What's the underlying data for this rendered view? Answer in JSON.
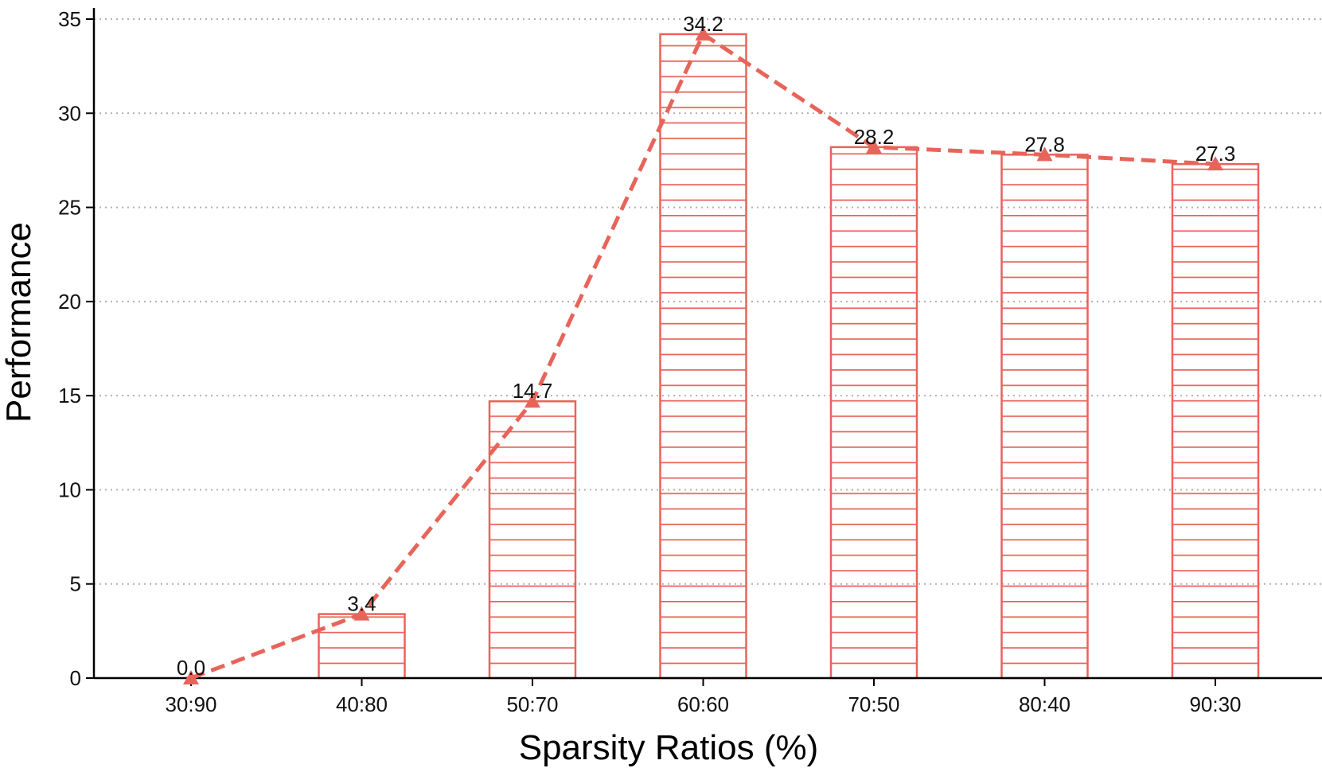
{
  "chart_data": {
    "type": "bar",
    "title": "",
    "xlabel": "Sparsity Ratios (%)",
    "ylabel": "Performance",
    "categories": [
      "30:90",
      "40:80",
      "50:70",
      "60:60",
      "70:50",
      "80:40",
      "90:30"
    ],
    "values": [
      0.0,
      3.4,
      14.7,
      34.2,
      28.2,
      27.8,
      27.3
    ],
    "data_labels": [
      "0.0",
      "3.4",
      "14.7",
      "34.2",
      "28.2",
      "27.8",
      "27.3"
    ],
    "ylim": [
      0,
      35
    ],
    "yticks": [
      0,
      5,
      10,
      15,
      20,
      25,
      30,
      35
    ],
    "ytick_labels": [
      "0",
      "5",
      "10",
      "15",
      "20",
      "25",
      "30",
      "35"
    ],
    "grid": "horizontal dotted",
    "overlay_line": {
      "style": "dashed",
      "marker": "triangle",
      "values": [
        0.0,
        3.4,
        14.7,
        34.2,
        28.2,
        27.8,
        27.3
      ]
    },
    "colors": {
      "bar_edge": "#e8645a",
      "bar_hatch": "#e8645a",
      "line": "#e8645a",
      "grid": "#b0b0b0",
      "axis": "#000000"
    }
  }
}
